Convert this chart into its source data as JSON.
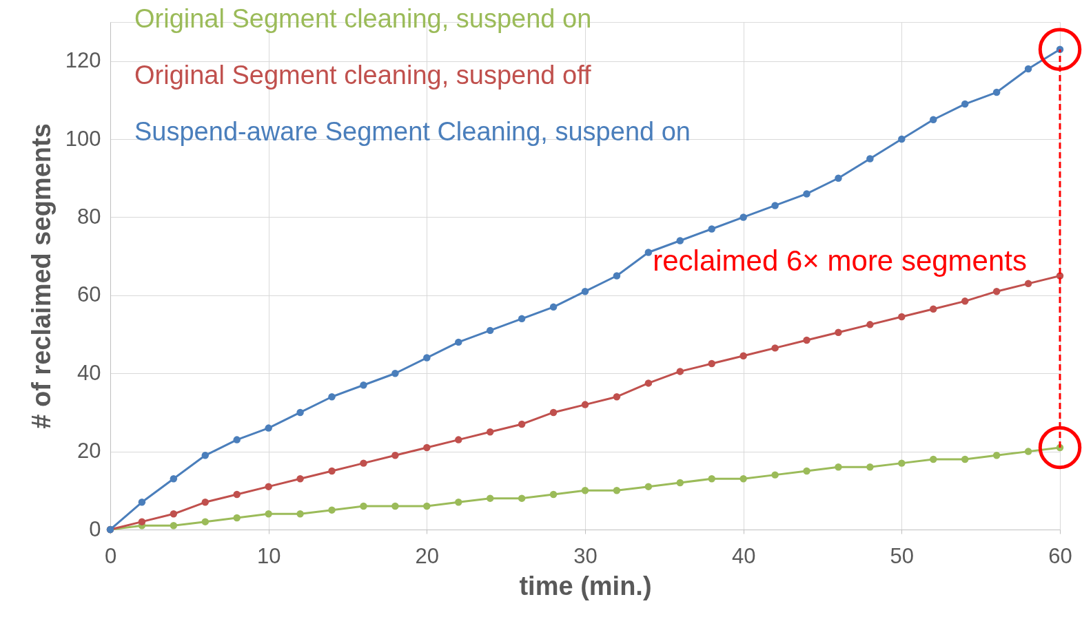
{
  "chart_data": {
    "type": "line",
    "xlabel": "time (min.)",
    "ylabel": "# of reclaimed segments",
    "x": [
      0,
      2,
      4,
      6,
      8,
      10,
      12,
      14,
      16,
      18,
      20,
      22,
      24,
      26,
      28,
      30,
      32,
      34,
      36,
      38,
      40,
      42,
      44,
      46,
      48,
      50,
      52,
      54,
      56,
      58,
      60
    ],
    "series": [
      {
        "name": "Original Segment cleaning, suspend on",
        "color": "#9bbb59",
        "values": [
          0,
          1,
          1,
          2,
          3,
          4,
          4,
          5,
          6,
          6,
          6,
          7,
          8,
          8,
          9,
          10,
          10,
          11,
          12,
          13,
          13,
          14,
          15,
          16,
          16,
          17,
          18,
          18,
          19,
          20,
          21
        ]
      },
      {
        "name": "Original Segment cleaning, suspend off",
        "color": "#c0504d",
        "values": [
          0,
          2,
          4,
          7,
          9,
          11,
          13,
          15,
          17,
          19,
          21,
          23,
          25,
          27,
          30,
          32,
          34,
          37.5,
          40.5,
          42.5,
          44.5,
          46.5,
          48.5,
          50.5,
          52.5,
          54.5,
          56.5,
          58.5,
          61,
          63,
          65
        ]
      },
      {
        "name": "Suspend-aware Segment Cleaning, suspend on",
        "color": "#4a7ebb",
        "values": [
          0,
          7,
          13,
          19,
          23,
          26,
          30,
          34,
          37,
          40,
          44,
          48,
          51,
          54,
          57,
          61,
          65,
          71,
          74,
          77,
          80,
          83,
          86,
          90,
          95,
          100,
          105,
          109,
          112,
          118,
          123
        ]
      }
    ],
    "annotations": [
      "reclaimed 6× more segments"
    ],
    "xlim": [
      0,
      60
    ],
    "xticks": [
      0,
      10,
      20,
      30,
      40,
      50,
      60
    ],
    "ylim": [
      0,
      130
    ],
    "yticks": [
      0,
      20,
      40,
      60,
      80,
      100,
      120
    ],
    "grid": true,
    "legend": "top left",
    "marker": "circle",
    "line_style": "solid"
  }
}
